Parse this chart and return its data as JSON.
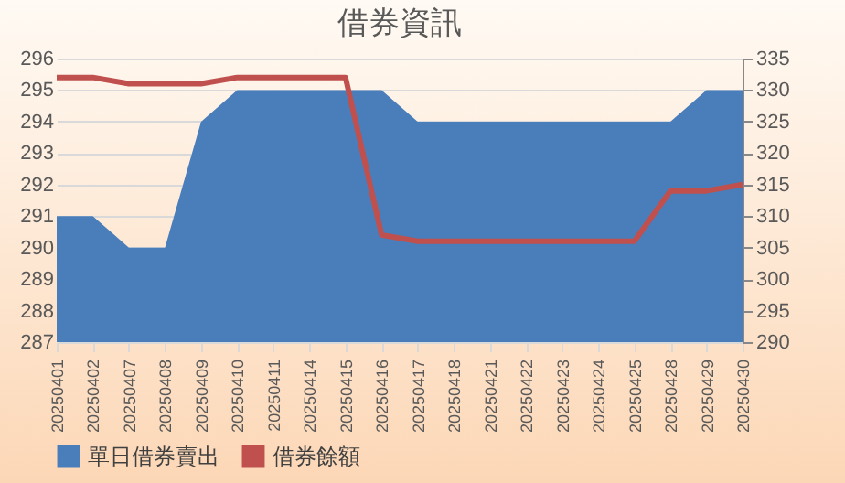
{
  "chart_data": {
    "type": "area",
    "title": "借券資訊",
    "categories": [
      "20250401",
      "20250402",
      "20250407",
      "20250408",
      "20250409",
      "20250410",
      "20250411",
      "20250414",
      "20250415",
      "20250416",
      "20250417",
      "20250418",
      "20250421",
      "20250422",
      "20250423",
      "20250424",
      "20250425",
      "20250428",
      "20250429",
      "20250430"
    ],
    "series": [
      {
        "name": "單日借券賣出",
        "color": "#4a7ebb",
        "values": [
          291,
          291,
          290,
          290,
          294,
          295,
          295,
          295,
          295,
          295,
          294,
          294,
          294,
          294,
          294,
          294,
          294,
          294,
          295,
          295
        ]
      },
      {
        "name": "借券餘額",
        "type": "line",
        "axis": "y2",
        "color": "#c0504d",
        "values": [
          332,
          332,
          331,
          331,
          331,
          332,
          332,
          332,
          332,
          307,
          306,
          306,
          306,
          306,
          306,
          306,
          306,
          314,
          314,
          315
        ]
      }
    ],
    "ylim": [
      287,
      296
    ],
    "yticks": [
      287,
      288,
      289,
      290,
      291,
      292,
      293,
      294,
      295,
      296
    ],
    "y2lim": [
      290,
      335
    ],
    "y2ticks": [
      290,
      295,
      300,
      305,
      310,
      315,
      320,
      325,
      330,
      335
    ],
    "grid": "y",
    "legend": "bottom"
  }
}
